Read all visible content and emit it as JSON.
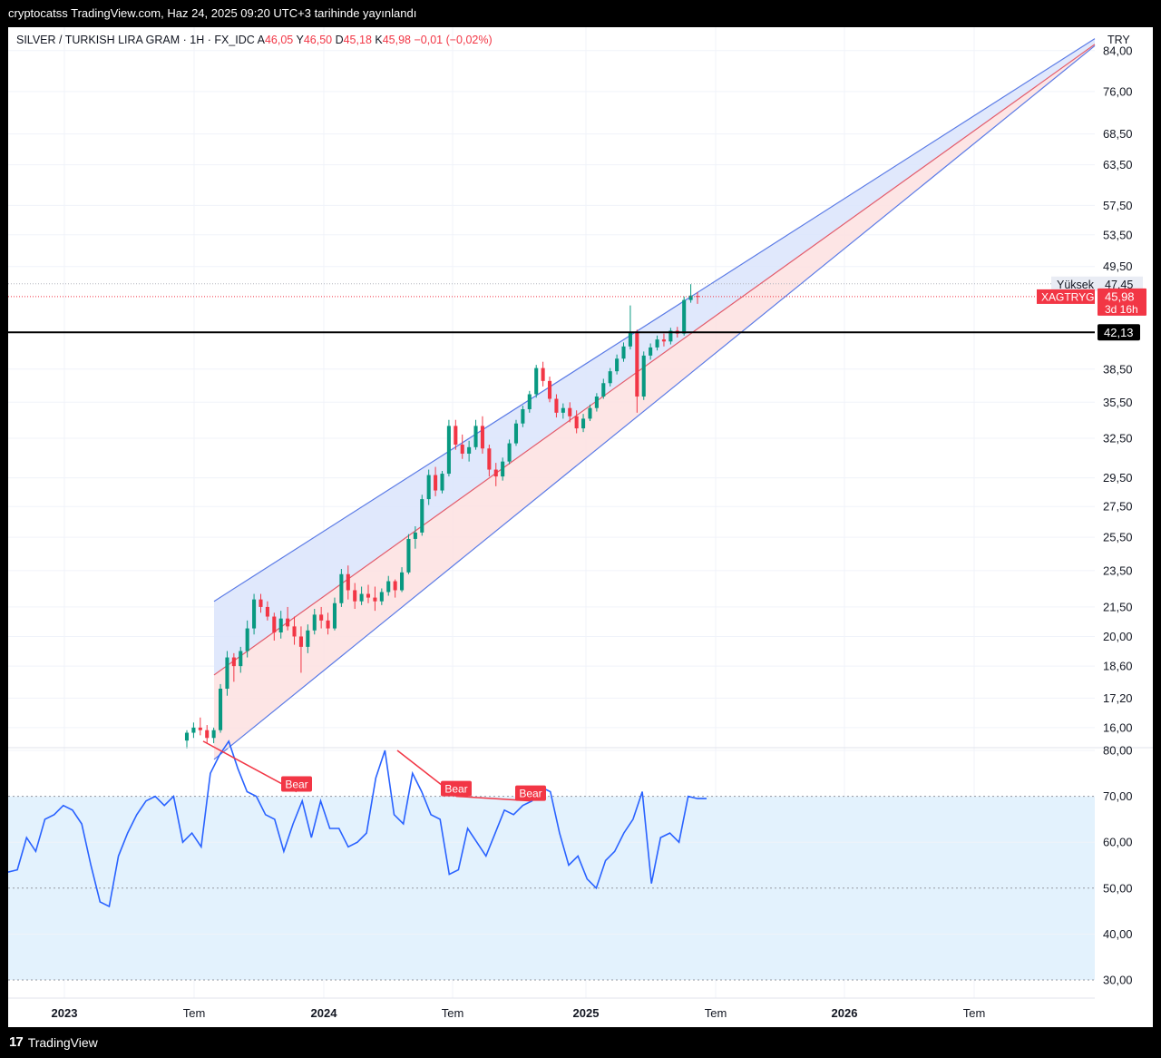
{
  "header": {
    "published": "cryptocatss TradingView.com, Haz 24, 2025 09:20 UTC+3 tarihinde yayınlandı"
  },
  "footer": {
    "brand": "TradingView"
  },
  "legend": {
    "symbol": "SILVER / TURKISH LIRA GRAM · 1H · FX_IDC",
    "open_label": "A",
    "open": "46,05",
    "high_label": "Y",
    "high": "46,50",
    "low_label": "D",
    "low": "45,18",
    "close_label": "K",
    "close": "45,98",
    "change": "−0,01 (−0,02%)"
  },
  "currency": "TRY",
  "price_axis": {
    "ticks": [
      "84,00",
      "76,00",
      "68,50",
      "63,50",
      "57,50",
      "53,50",
      "49,50",
      "38,50",
      "35,50",
      "32,50",
      "29,50",
      "27,50",
      "25,50",
      "23,50",
      "21,50",
      "20,00",
      "18,60",
      "17,20",
      "16,00"
    ]
  },
  "markers": {
    "high_label": "Yüksek",
    "high_value": "47,45",
    "symbol_tag": "XAGTRYG",
    "last_price": "45,98",
    "countdown": "3d 16h",
    "hline_value": "42,13"
  },
  "rsi_axis": {
    "ticks": [
      "80,00",
      "70,00",
      "60,00",
      "50,00",
      "40,00",
      "30,00"
    ]
  },
  "time_axis": {
    "labels": [
      {
        "text": "2023",
        "bold": true
      },
      {
        "text": "Tem",
        "bold": false
      },
      {
        "text": "2024",
        "bold": true
      },
      {
        "text": "Tem",
        "bold": false
      },
      {
        "text": "2025",
        "bold": true
      },
      {
        "text": "Tem",
        "bold": false
      },
      {
        "text": "2026",
        "bold": true
      },
      {
        "text": "Tem",
        "bold": false
      }
    ]
  },
  "divergence_labels": [
    "Bear",
    "Bear",
    "Bear"
  ],
  "colors": {
    "up": "#089981",
    "down": "#f23645",
    "rsi": "#2962ff",
    "channel_line": "#5b7be6",
    "upper_fill": "#dbe4fb",
    "lower_fill": "#fde0e0",
    "rsi_band": "#e3f2fd"
  },
  "chart_data": [
    {
      "type": "candlestick",
      "title": "SILVER / TURKISH LIRA GRAM",
      "scale": "log",
      "ylim": [
        15.3,
        87
      ],
      "candles_weekly_approx": [
        [
          "2023-04",
          15.5,
          15.9,
          15.2,
          15.8
        ],
        [
          "2023-04",
          15.8,
          16.2,
          15.6,
          16.0
        ],
        [
          "2023-05",
          16.0,
          16.4,
          15.7,
          15.9
        ],
        [
          "2023-05",
          15.9,
          16.1,
          15.4,
          15.6
        ],
        [
          "2023-05",
          15.6,
          16.0,
          15.4,
          15.9
        ],
        [
          "2023-06",
          15.9,
          17.8,
          15.8,
          17.6
        ],
        [
          "2023-06",
          17.6,
          19.3,
          17.3,
          19.0
        ],
        [
          "2023-06",
          19.0,
          19.2,
          17.9,
          18.6
        ],
        [
          "2023-06",
          18.6,
          19.5,
          18.3,
          19.3
        ],
        [
          "2023-07",
          19.3,
          20.8,
          19.0,
          20.4
        ],
        [
          "2023-07",
          20.4,
          22.2,
          20.1,
          21.9
        ],
        [
          "2023-07",
          21.9,
          22.2,
          21.2,
          21.5
        ],
        [
          "2023-07",
          21.5,
          21.8,
          20.8,
          21.0
        ],
        [
          "2023-08",
          21.0,
          21.2,
          19.8,
          20.2
        ],
        [
          "2023-08",
          20.2,
          21.3,
          19.9,
          20.9
        ],
        [
          "2023-08",
          20.9,
          21.5,
          20.3,
          20.5
        ],
        [
          "2023-09",
          20.5,
          21.0,
          19.6,
          20.0
        ],
        [
          "2023-09",
          20.0,
          20.5,
          18.3,
          19.5
        ],
        [
          "2023-09",
          19.5,
          20.6,
          19.2,
          20.3
        ],
        [
          "2023-10",
          20.3,
          21.4,
          20.1,
          21.1
        ],
        [
          "2023-10",
          21.1,
          21.5,
          20.4,
          20.8
        ],
        [
          "2023-10",
          20.8,
          21.2,
          20.1,
          20.4
        ],
        [
          "2023-11",
          20.4,
          22.0,
          20.3,
          21.7
        ],
        [
          "2023-11",
          21.7,
          23.6,
          21.5,
          23.3
        ],
        [
          "2023-11",
          23.3,
          23.8,
          21.9,
          22.4
        ],
        [
          "2023-12",
          22.4,
          22.8,
          21.4,
          21.8
        ],
        [
          "2023-12",
          21.8,
          22.6,
          21.6,
          22.2
        ],
        [
          "2023-12",
          22.2,
          22.7,
          21.7,
          22.0
        ],
        [
          "2024-01",
          22.0,
          22.6,
          21.3,
          21.8
        ],
        [
          "2024-01",
          21.8,
          22.5,
          21.6,
          22.3
        ],
        [
          "2024-01",
          22.3,
          23.2,
          22.1,
          22.9
        ],
        [
          "2024-02",
          22.9,
          23.0,
          22.0,
          22.4
        ],
        [
          "2024-02",
          22.4,
          23.7,
          22.3,
          23.4
        ],
        [
          "2024-03",
          23.4,
          25.7,
          23.3,
          25.4
        ],
        [
          "2024-03",
          25.4,
          26.2,
          24.8,
          25.8
        ],
        [
          "2024-04",
          25.8,
          28.3,
          25.6,
          28.0
        ],
        [
          "2024-04",
          28.0,
          30.1,
          27.6,
          29.7
        ],
        [
          "2024-04",
          29.7,
          30.3,
          28.2,
          28.6
        ],
        [
          "2024-05",
          28.6,
          30.0,
          28.4,
          29.8
        ],
        [
          "2024-05",
          29.8,
          34.0,
          29.6,
          33.5
        ],
        [
          "2024-05",
          33.5,
          34.0,
          31.6,
          32.0
        ],
        [
          "2024-06",
          32.0,
          32.8,
          30.9,
          31.3
        ],
        [
          "2024-06",
          31.3,
          32.3,
          30.7,
          31.8
        ],
        [
          "2024-06",
          31.8,
          34.0,
          31.6,
          33.5
        ],
        [
          "2024-07",
          33.5,
          34.3,
          31.3,
          31.7
        ],
        [
          "2024-07",
          31.7,
          32.0,
          29.6,
          30.1
        ],
        [
          "2024-07",
          30.1,
          30.6,
          28.9,
          29.6
        ],
        [
          "2024-08",
          29.6,
          31.0,
          29.3,
          30.7
        ],
        [
          "2024-08",
          30.7,
          32.4,
          30.5,
          32.1
        ],
        [
          "2024-08",
          32.1,
          34.0,
          31.9,
          33.7
        ],
        [
          "2024-09",
          33.7,
          35.2,
          33.4,
          34.9
        ],
        [
          "2024-09",
          34.9,
          36.5,
          34.6,
          36.2
        ],
        [
          "2024-10",
          36.2,
          38.9,
          35.9,
          38.6
        ],
        [
          "2024-10",
          38.6,
          39.2,
          36.9,
          37.4
        ],
        [
          "2024-10",
          37.4,
          37.8,
          35.5,
          35.8
        ],
        [
          "2024-11",
          35.8,
          36.2,
          34.2,
          34.6
        ],
        [
          "2024-11",
          34.6,
          35.4,
          34.1,
          35.0
        ],
        [
          "2024-11",
          35.0,
          35.5,
          33.8,
          34.3
        ],
        [
          "2024-12",
          34.3,
          34.8,
          32.9,
          33.3
        ],
        [
          "2024-12",
          33.3,
          34.5,
          33.0,
          34.1
        ],
        [
          "2025-01",
          34.1,
          35.3,
          33.9,
          35.0
        ],
        [
          "2025-01",
          35.0,
          36.3,
          34.7,
          36.0
        ],
        [
          "2025-01",
          36.0,
          37.6,
          35.8,
          37.2
        ],
        [
          "2025-02",
          37.2,
          38.6,
          36.9,
          38.3
        ],
        [
          "2025-02",
          38.3,
          39.9,
          38.0,
          39.5
        ],
        [
          "2025-03",
          39.5,
          41.1,
          39.2,
          40.7
        ],
        [
          "2025-03",
          40.7,
          45.0,
          40.4,
          42.1
        ],
        [
          "2025-03",
          42.1,
          42.4,
          34.6,
          36.0
        ],
        [
          "2025-04",
          36.0,
          40.2,
          35.7,
          39.8
        ],
        [
          "2025-04",
          39.8,
          41.0,
          39.4,
          40.6
        ],
        [
          "2025-04",
          40.6,
          41.8,
          40.3,
          41.4
        ],
        [
          "2025-05",
          41.4,
          42.0,
          40.7,
          41.2
        ],
        [
          "2025-05",
          41.2,
          42.6,
          40.9,
          42.3
        ],
        [
          "2025-05",
          42.3,
          42.7,
          41.6,
          42.0
        ],
        [
          "2025-06",
          42.0,
          46.0,
          41.8,
          45.6
        ],
        [
          "2025-06",
          45.6,
          47.4,
          45.3,
          46.1
        ],
        [
          "2025-06",
          46.05,
          46.5,
          45.18,
          45.98
        ]
      ],
      "horizontal_line": 42.13
    },
    {
      "type": "line",
      "scale": "linear",
      "ylim": [
        30,
        80
      ],
      "overbought": 70,
      "midline": 50,
      "oversold": 30,
      "values": [
        53.5,
        54,
        61,
        58,
        65,
        66,
        68,
        67,
        64,
        55,
        47,
        46,
        57,
        62,
        66,
        69,
        70,
        68,
        70,
        60,
        62,
        59,
        75,
        79,
        82,
        76,
        71,
        70,
        66,
        65,
        58,
        64,
        69,
        61,
        69,
        63,
        63,
        59,
        60,
        62,
        74,
        80,
        66,
        64,
        75,
        71,
        66,
        65,
        53,
        54,
        63,
        60,
        57,
        62,
        67,
        66,
        68,
        69,
        72,
        71,
        62,
        55,
        57,
        52,
        50,
        56,
        58,
        62,
        65,
        71,
        51,
        61,
        62,
        60,
        70,
        69.5,
        69.5
      ],
      "divergences": [
        {
          "from": 82,
          "to": 71,
          "label": "Bear"
        },
        {
          "from": 80,
          "to": 70,
          "label": "Bear"
        },
        {
          "from": 70,
          "to": 69,
          "label": "Bear"
        }
      ]
    }
  ]
}
